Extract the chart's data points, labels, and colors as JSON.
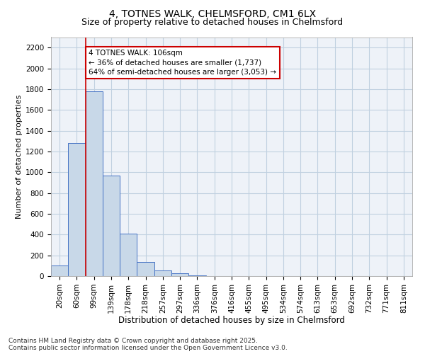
{
  "title1": "4, TOTNES WALK, CHELMSFORD, CM1 6LX",
  "title2": "Size of property relative to detached houses in Chelmsford",
  "xlabel": "Distribution of detached houses by size in Chelmsford",
  "ylabel": "Number of detached properties",
  "categories": [
    "20sqm",
    "60sqm",
    "99sqm",
    "139sqm",
    "178sqm",
    "218sqm",
    "257sqm",
    "297sqm",
    "336sqm",
    "376sqm",
    "416sqm",
    "455sqm",
    "495sqm",
    "534sqm",
    "574sqm",
    "613sqm",
    "653sqm",
    "692sqm",
    "732sqm",
    "771sqm",
    "811sqm"
  ],
  "values": [
    100,
    1280,
    1780,
    970,
    410,
    135,
    55,
    30,
    10,
    0,
    0,
    0,
    0,
    0,
    0,
    0,
    0,
    0,
    0,
    0,
    0
  ],
  "bar_color": "#c8d8e8",
  "bar_edge_color": "#4472c4",
  "property_line_color": "#cc0000",
  "annotation_text": "4 TOTNES WALK: 106sqm\n← 36% of detached houses are smaller (1,737)\n64% of semi-detached houses are larger (3,053) →",
  "annotation_box_color": "#cc0000",
  "ylim": [
    0,
    2300
  ],
  "yticks": [
    0,
    200,
    400,
    600,
    800,
    1000,
    1200,
    1400,
    1600,
    1800,
    2000,
    2200
  ],
  "grid_color": "#c0d0e0",
  "background_color": "#eef2f8",
  "footer_text": "Contains HM Land Registry data © Crown copyright and database right 2025.\nContains public sector information licensed under the Open Government Licence v3.0.",
  "title1_fontsize": 10,
  "title2_fontsize": 9,
  "xlabel_fontsize": 8.5,
  "ylabel_fontsize": 8,
  "annotation_fontsize": 7.5,
  "footer_fontsize": 6.5,
  "tick_fontsize": 7.5
}
